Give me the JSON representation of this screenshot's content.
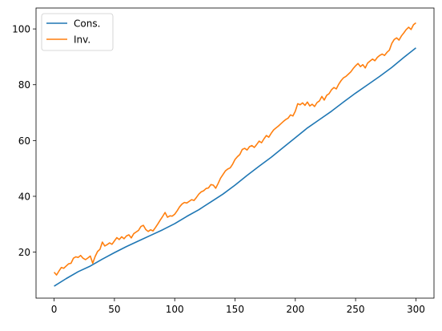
{
  "chart_data": {
    "type": "line",
    "title": "",
    "xlabel": "",
    "ylabel": "",
    "xlim": [
      -15,
      315
    ],
    "ylim": [
      3.5,
      107.5
    ],
    "xticks": [
      0,
      50,
      100,
      150,
      200,
      250,
      300
    ],
    "yticks": [
      20,
      40,
      60,
      80,
      100
    ],
    "grid": false,
    "legend": {
      "placement": "upper-left",
      "entries": [
        "Cons.",
        "Inv."
      ]
    },
    "series": [
      {
        "name": "Cons.",
        "color": "#1f77b4",
        "x": [
          0,
          10,
          20,
          30,
          40,
          50,
          60,
          70,
          80,
          90,
          100,
          110,
          120,
          130,
          140,
          150,
          160,
          170,
          180,
          190,
          200,
          210,
          220,
          230,
          240,
          250,
          260,
          270,
          280,
          290,
          300
        ],
        "y": [
          7.8,
          10.5,
          13.0,
          15.0,
          17.5,
          19.8,
          22.0,
          24.0,
          26.0,
          28.0,
          30.2,
          32.8,
          35.2,
          38.0,
          40.8,
          44.0,
          47.5,
          50.8,
          54.0,
          57.5,
          61.0,
          64.5,
          67.5,
          70.5,
          73.8,
          77.0,
          80.0,
          83.0,
          86.2,
          89.8,
          93.2
        ]
      },
      {
        "name": "Inv.",
        "color": "#ff7f0e",
        "x": [
          0,
          2,
          4,
          6,
          8,
          10,
          12,
          14,
          16,
          18,
          20,
          22,
          24,
          26,
          28,
          30,
          32,
          34,
          36,
          38,
          40,
          42,
          44,
          46,
          48,
          50,
          52,
          54,
          56,
          58,
          60,
          62,
          64,
          66,
          68,
          70,
          72,
          74,
          76,
          78,
          80,
          82,
          84,
          86,
          88,
          90,
          92,
          94,
          96,
          98,
          100,
          102,
          104,
          106,
          108,
          110,
          112,
          114,
          116,
          118,
          120,
          122,
          124,
          126,
          128,
          130,
          132,
          134,
          136,
          138,
          140,
          142,
          144,
          146,
          148,
          150,
          152,
          154,
          156,
          158,
          160,
          162,
          164,
          166,
          168,
          170,
          172,
          174,
          176,
          178,
          180,
          182,
          184,
          186,
          188,
          190,
          192,
          194,
          196,
          198,
          200,
          202,
          204,
          206,
          208,
          210,
          212,
          214,
          216,
          218,
          220,
          222,
          224,
          226,
          228,
          230,
          232,
          234,
          236,
          238,
          240,
          242,
          244,
          246,
          248,
          250,
          252,
          254,
          256,
          258,
          260,
          262,
          264,
          266,
          268,
          270,
          272,
          274,
          276,
          278,
          280,
          282,
          284,
          286,
          288,
          290,
          292,
          294,
          296,
          298,
          300
        ],
        "y": [
          12.8,
          11.8,
          13.2,
          14.5,
          14.2,
          15.0,
          15.8,
          16.0,
          17.8,
          18.3,
          18.1,
          18.8,
          17.8,
          17.3,
          17.9,
          18.6,
          16.0,
          18.4,
          20.2,
          21.0,
          23.6,
          22.2,
          22.7,
          23.3,
          22.8,
          24.0,
          25.2,
          24.5,
          25.5,
          24.8,
          25.8,
          26.2,
          25.1,
          26.6,
          27.2,
          27.8,
          29.2,
          29.6,
          28.1,
          27.4,
          28.0,
          27.6,
          28.8,
          30.1,
          31.5,
          32.8,
          34.2,
          32.5,
          33.0,
          32.9,
          33.6,
          34.8,
          36.2,
          37.2,
          37.8,
          37.6,
          38.2,
          38.8,
          38.5,
          39.6,
          40.8,
          41.6,
          42.0,
          42.8,
          43.0,
          44.2,
          44.0,
          42.9,
          44.6,
          46.5,
          47.8,
          49.1,
          49.8,
          50.2,
          51.5,
          53.2,
          54.2,
          55.0,
          56.8,
          57.2,
          56.6,
          57.8,
          58.2,
          57.5,
          58.6,
          59.8,
          59.2,
          60.6,
          61.8,
          61.2,
          62.6,
          63.8,
          64.5,
          65.2,
          66.0,
          66.8,
          67.5,
          68.0,
          69.2,
          68.8,
          70.5,
          73.2,
          72.8,
          73.5,
          72.6,
          73.8,
          72.4,
          73.0,
          72.2,
          73.6,
          74.2,
          75.8,
          74.5,
          76.2,
          76.8,
          78.2,
          79.0,
          78.5,
          80.2,
          81.5,
          82.5,
          83.0,
          83.8,
          84.6,
          85.8,
          86.8,
          87.6,
          86.5,
          87.2,
          86.0,
          87.8,
          88.5,
          89.2,
          88.6,
          89.8,
          90.5,
          91.0,
          90.5,
          91.6,
          92.4,
          94.8,
          96.2,
          96.8,
          96.0,
          97.5,
          98.6,
          99.8,
          100.6,
          99.8,
          101.5,
          102.2
        ]
      }
    ]
  }
}
